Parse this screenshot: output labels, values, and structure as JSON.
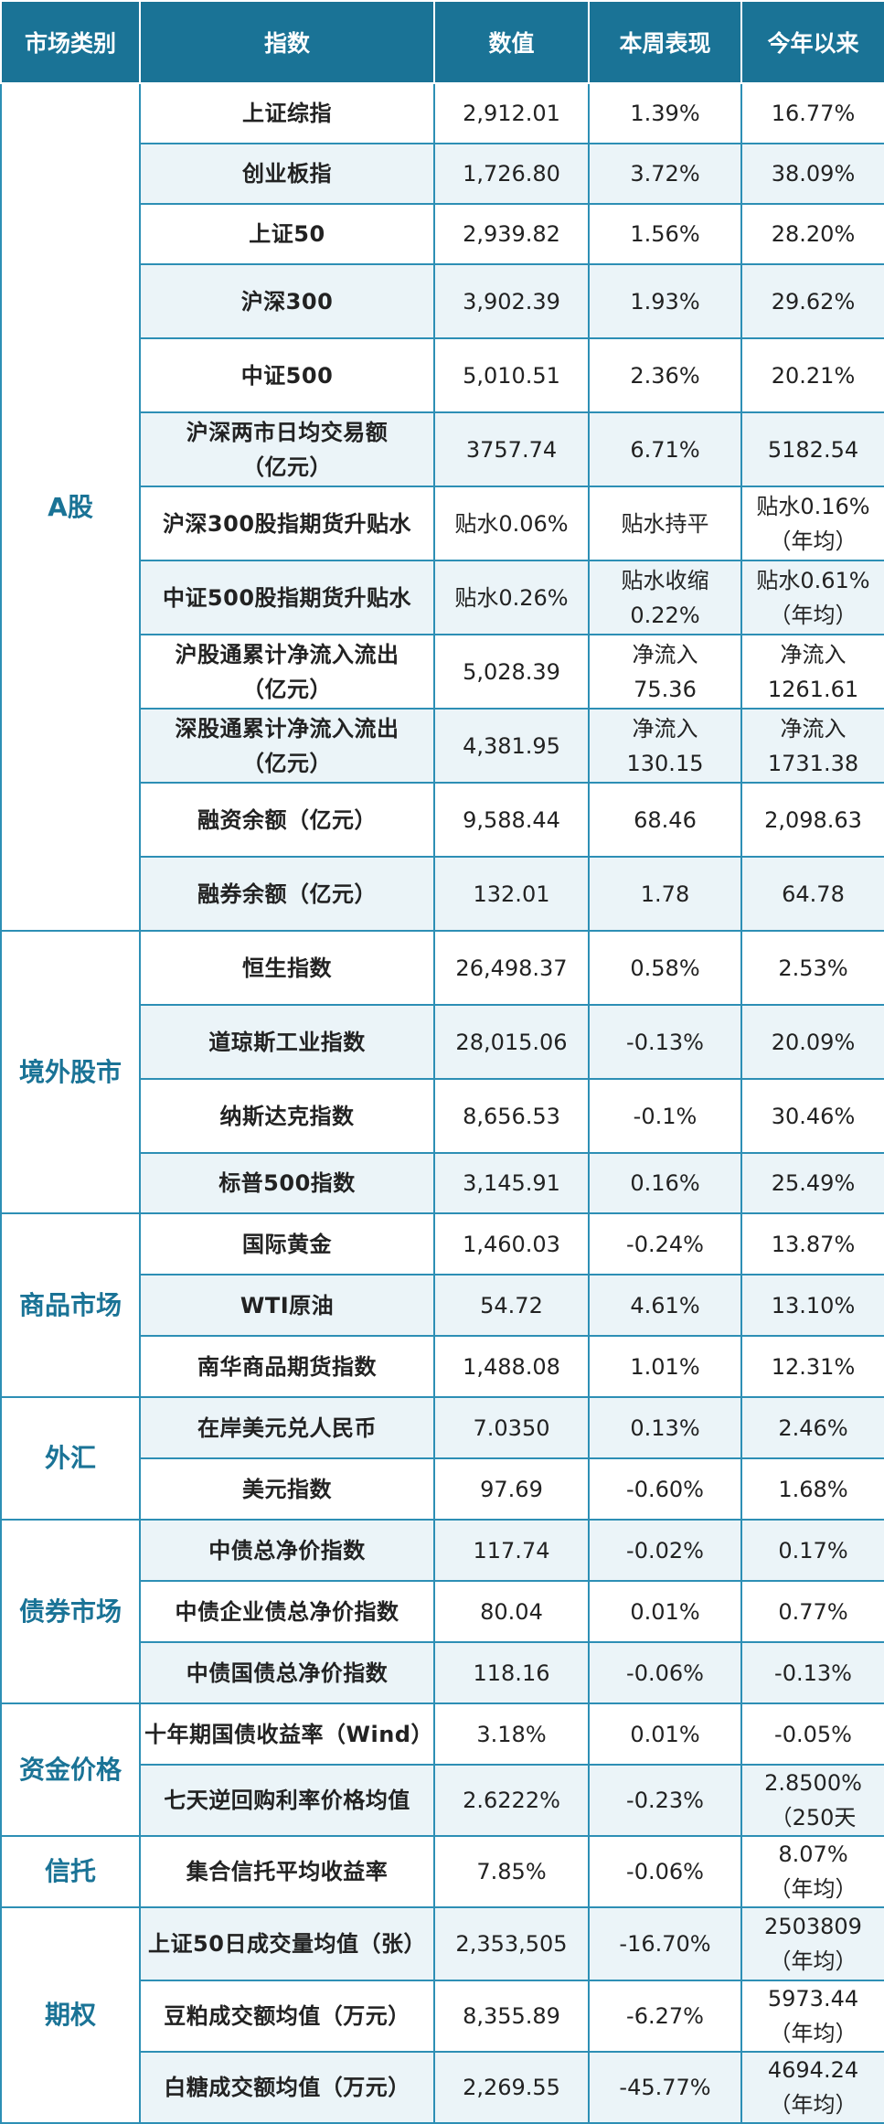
{
  "header": [
    "市场类别",
    "指数",
    "数值",
    "本周表现",
    "今年以来"
  ],
  "groups": [
    {
      "category": "A股",
      "rows": [
        {
          "h": 66,
          "cells": [
            "上证综指",
            "2,912.01",
            "1.39%",
            "16.77%"
          ]
        },
        {
          "h": 66,
          "cells": [
            "创业板指",
            "1,726.80",
            "3.72%",
            "38.09%"
          ]
        },
        {
          "h": 66,
          "cells": [
            "上证50",
            "2,939.82",
            "1.56%",
            "28.20%"
          ]
        },
        {
          "h": 81,
          "cells": [
            "沪深300",
            "3,902.39",
            "1.93%",
            "29.62%"
          ]
        },
        {
          "h": 81,
          "cells": [
            "中证500",
            "5,010.51",
            "2.36%",
            "20.21%"
          ]
        },
        {
          "h": 81,
          "cells": [
            "沪深两市日均交易额\n（亿元）",
            "3757.74",
            "6.71%",
            "5182.54"
          ]
        },
        {
          "h": 81,
          "cells": [
            "沪深300股指期货升贴水",
            "贴水0.06%",
            "贴水持平",
            "贴水0.16%\n（年均）"
          ]
        },
        {
          "h": 81,
          "cells": [
            "中证500股指期货升贴水",
            "贴水0.26%",
            "贴水收缩\n0.22%",
            "贴水0.61%\n（年均）"
          ]
        },
        {
          "h": 81,
          "cells": [
            "沪股通累计净流入流出\n（亿元）",
            "5,028.39",
            "净流入\n75.36",
            "净流入\n1261.61"
          ]
        },
        {
          "h": 81,
          "cells": [
            "深股通累计净流入流出\n（亿元）",
            "4,381.95",
            "净流入\n130.15",
            "净流入\n1731.38"
          ]
        },
        {
          "h": 81,
          "cells": [
            "融资余额（亿元）",
            "9,588.44",
            "68.46",
            "2,098.63"
          ]
        },
        {
          "h": 81,
          "cells": [
            "融券余额（亿元）",
            "132.01",
            "1.78",
            "64.78"
          ]
        }
      ]
    },
    {
      "category": "境外股市",
      "rows": [
        {
          "h": 81,
          "cells": [
            "恒生指数",
            "26,498.37",
            "0.58%",
            "2.53%"
          ]
        },
        {
          "h": 81,
          "cells": [
            "道琼斯工业指数",
            "28,015.06",
            "-0.13%",
            "20.09%"
          ]
        },
        {
          "h": 81,
          "cells": [
            "纳斯达克指数",
            "8,656.53",
            "-0.1%",
            "30.46%"
          ]
        },
        {
          "h": 66,
          "cells": [
            "标普500指数",
            "3,145.91",
            "0.16%",
            "25.49%"
          ]
        }
      ]
    },
    {
      "category": "商品市场",
      "rows": [
        {
          "h": 67,
          "cells": [
            "国际黄金",
            "1,460.03",
            "-0.24%",
            "13.87%"
          ]
        },
        {
          "h": 67,
          "cells": [
            "WTI原油",
            "54.72",
            "4.61%",
            "13.10%"
          ]
        },
        {
          "h": 67,
          "cells": [
            "南华商品期货指数",
            "1,488.08",
            "1.01%",
            "12.31%"
          ]
        }
      ]
    },
    {
      "category": "外汇",
      "rows": [
        {
          "h": 67,
          "cells": [
            "在岸美元兑人民币",
            "7.0350",
            "0.13%",
            "2.46%"
          ]
        },
        {
          "h": 67,
          "cells": [
            "美元指数",
            "97.69",
            "-0.60%",
            "1.68%"
          ]
        }
      ]
    },
    {
      "category": "债券市场",
      "rows": [
        {
          "h": 67,
          "cells": [
            "中债总净价指数",
            "117.74",
            "-0.02%",
            "0.17%"
          ]
        },
        {
          "h": 67,
          "cells": [
            "中债企业债总净价指数",
            "80.04",
            "0.01%",
            "0.77%"
          ]
        },
        {
          "h": 67,
          "cells": [
            "中债国债总净价指数",
            "118.16",
            "-0.06%",
            "-0.13%"
          ]
        }
      ]
    },
    {
      "category": "资金价格",
      "rows": [
        {
          "h": 67,
          "cells": [
            "十年期国债收益率（Wind）",
            "3.18%",
            "0.01%",
            "-0.05%"
          ]
        },
        {
          "h": 72,
          "cells": [
            "七天逆回购利率价格均值",
            "2.6222%",
            "-0.23%",
            "2.8500%\n（250天"
          ]
        }
      ]
    },
    {
      "category": "信托",
      "rows": [
        {
          "h": 73,
          "cells": [
            "集合信托平均收益率",
            "7.85%",
            "-0.06%",
            "8.07%\n（年均）"
          ]
        }
      ]
    },
    {
      "category": "期权",
      "rows": [
        {
          "h": 80,
          "cells": [
            "上证50日成交量均值（张）",
            "2,353,505",
            "-16.70%",
            "2503809\n（年均）"
          ]
        },
        {
          "h": 74,
          "cells": [
            "豆粕成交额均值（万元）",
            "8,355.89",
            "-6.27%",
            "5973.44\n（年均）"
          ]
        },
        {
          "h": 74,
          "cells": [
            "白糖成交额均值（万元）",
            "2,269.55",
            "-45.77%",
            "4694.24\n（年均）"
          ]
        }
      ]
    }
  ]
}
